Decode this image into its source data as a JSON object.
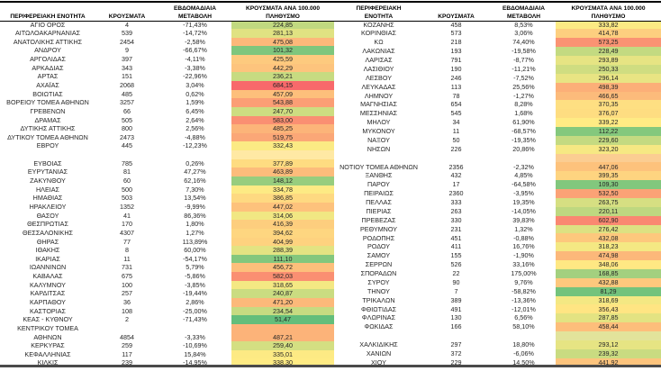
{
  "color_scale": {
    "min_color": "#63BE7B",
    "mid_color": "#FFEB84",
    "max_color": "#F8696B"
  },
  "tables": [
    {
      "id": "left",
      "headers": [
        "ΠΕΡΙΦΕΡΕΙΑΚΗ ΕΝΟΤΗΤΑ",
        "ΚΡΟΥΣΜΑΤΑ",
        "ΕΒΔΟΜΑΔΙΑΙΑ\nΜΕΤΑΒΟΛΗ",
        "ΚΡΟΥΣΜΑΤΑ ΑΝΑ 100.000\nΠΛΗΘΥΣΜΟ"
      ],
      "rows": [
        {
          "name": "ΑΓΙΟ ΟΡΟΣ",
          "cases": "4",
          "change": "-71,43%",
          "per100k": "224,85"
        },
        {
          "name": "ΑΙΤΩΛΟΑΚΑΡΝΑΝΙΑΣ",
          "cases": "539",
          "change": "-14,72%",
          "per100k": "281,13"
        },
        {
          "name": "ΑΝΑΤΟΛΙΚΗΣ ΑΤΤΙΚΗΣ",
          "cases": "2454",
          "change": "-2,58%",
          "per100k": "475,08"
        },
        {
          "name": "ΑΝΔΡΟΥ",
          "cases": "9",
          "change": "-66,67%",
          "per100k": "101,32"
        },
        {
          "name": "ΑΡΓΟΛΙΔΑΣ",
          "cases": "397",
          "change": "-4,11%",
          "per100k": "425,59"
        },
        {
          "name": "ΑΡΚΑΔΙΑΣ",
          "cases": "343",
          "change": "-3,38%",
          "per100k": "442,29"
        },
        {
          "name": "ΑΡΤΑΣ",
          "cases": "151",
          "change": "-22,96%",
          "per100k": "236,21"
        },
        {
          "name": "ΑΧΑΪΑΣ",
          "cases": "2068",
          "change": "3,04%",
          "per100k": "684,15"
        },
        {
          "name": "ΒΟΙΩΤΙΑΣ",
          "cases": "485",
          "change": "0,62%",
          "per100k": "457,09"
        },
        {
          "name": "ΒΟΡΕΙΟΥ ΤΟΜΕΑ ΑΘΗΝΩΝ",
          "cases": "3257",
          "change": "1,59%",
          "per100k": "543,88"
        },
        {
          "name": "ΓΡΕΒΕΝΩΝ",
          "cases": "66",
          "change": "6,45%",
          "per100k": "247,70"
        },
        {
          "name": "ΔΡΑΜΑΣ",
          "cases": "505",
          "change": "2,64%",
          "per100k": "583,00"
        },
        {
          "name": "ΔΥΤΙΚΗΣ ΑΤΤΙΚΗΣ",
          "cases": "800",
          "change": "2,56%",
          "per100k": "485,25"
        },
        {
          "name": "ΔΥΤΙΚΟΥ ΤΟΜΕΑ ΑΘΗΝΩΝ",
          "cases": "2473",
          "change": "-4,88%",
          "per100k": "519,75"
        },
        {
          "name": "ΕΒΡΟΥ",
          "cases": "445",
          "change": "-12,23%",
          "per100k": "332,43"
        },
        {
          "spacer": true,
          "spacer_color": "#FFE9A4"
        },
        {
          "name": "ΕΥΒΟΙΑΣ",
          "cases": "785",
          "change": "0,26%",
          "per100k": "377,89"
        },
        {
          "name": "ΕΥΡΥΤΑΝΙΑΣ",
          "cases": "81",
          "change": "47,27%",
          "per100k": "463,89"
        },
        {
          "name": "ΖΑΚΥΝΘΟΥ",
          "cases": "60",
          "change": "62,16%",
          "per100k": "148,12"
        },
        {
          "name": "ΗΛΕΙΑΣ",
          "cases": "500",
          "change": "7,30%",
          "per100k": "334,78"
        },
        {
          "name": "ΗΜΑΘΙΑΣ",
          "cases": "503",
          "change": "13,54%",
          "per100k": "386,85"
        },
        {
          "name": "ΗΡΑΚΛΕΙΟΥ",
          "cases": "1352",
          "change": "-9,99%",
          "per100k": "447,02"
        },
        {
          "name": "ΘΑΣΟΥ",
          "cases": "41",
          "change": "86,36%",
          "per100k": "314,06"
        },
        {
          "name": "ΘΕΣΠΡΩΤΙΑΣ",
          "cases": "170",
          "change": "1,80%",
          "per100k": "416,39"
        },
        {
          "name": "ΘΕΣΣΑΛΟΝΙΚΗΣ",
          "cases": "4307",
          "change": "1,27%",
          "per100k": "394,62"
        },
        {
          "name": "ΘΗΡΑΣ",
          "cases": "77",
          "change": "113,89%",
          "per100k": "404,99"
        },
        {
          "name": "ΙΘΑΚΗΣ",
          "cases": "8",
          "change": "60,00%",
          "per100k": "288,39"
        },
        {
          "name": "ΙΚΑΡΙΑΣ",
          "cases": "11",
          "change": "-54,17%",
          "per100k": "111,10"
        },
        {
          "name": "ΙΩΑΝΝΙΝΩΝ",
          "cases": "731",
          "change": "5,79%",
          "per100k": "456,72"
        },
        {
          "name": "ΚΑΒΑΛΑΣ",
          "cases": "675",
          "change": "-5,86%",
          "per100k": "582,03"
        },
        {
          "name": "ΚΑΛΥΜΝΟΥ",
          "cases": "100",
          "change": "-3,85%",
          "per100k": "318,65"
        },
        {
          "name": "ΚΑΡΔΙΤΣΑΣ",
          "cases": "257",
          "change": "-19,44%",
          "per100k": "240,87"
        },
        {
          "name": "ΚΑΡΠΑΘΟΥ",
          "cases": "36",
          "change": "2,86%",
          "per100k": "471,20"
        },
        {
          "name": "ΚΑΣΤΟΡΙΑΣ",
          "cases": "108",
          "change": "-25,00%",
          "per100k": "234,54"
        },
        {
          "name": "ΚΕΑΣ - ΚΥΘΝΟΥ",
          "cases": "2",
          "change": "-71,43%",
          "per100k": "51,47"
        },
        {
          "name": "ΚΕΝΤΡΙΚΟΥ ΤΟΜΕΑ\nΑΘΗΝΩΝ",
          "cases": "4854",
          "change": "-3,33%",
          "per100k": "487,21",
          "tall": true
        },
        {
          "name": "ΚΕΡΚΥΡΑΣ",
          "cases": "259",
          "change": "-10,69%",
          "per100k": "259,40"
        },
        {
          "name": "ΚΕΦΑΛΛΗΝΙΑΣ",
          "cases": "117",
          "change": "15,84%",
          "per100k": "335,01"
        },
        {
          "name": "ΚΙΛΚΙΣ",
          "cases": "239",
          "change": "-14,95%",
          "per100k": "338,30"
        }
      ]
    },
    {
      "id": "right",
      "headers": [
        "ΠΕΡΙΦΕΡΕΙΑΚΗ\nΕΝΟΤΗΤΑ",
        "ΚΡΟΥΣΜΑΤΑ",
        "ΕΒΔΟΜΑΔΙΑΙΑ\nΜΕΤΑΒΟΛΗ",
        "ΚΡΟΥΣΜΑΤΑ ΑΝΑ 100.000\nΠΛΗΘΥΣΜΟ"
      ],
      "rows": [
        {
          "name": "ΚΟΖΑΝΗΣ",
          "cases": "458",
          "change": "8,53%",
          "per100k": "333,82"
        },
        {
          "name": "ΚΟΡΙΝΘΙΑΣ",
          "cases": "573",
          "change": "3,06%",
          "per100k": "414,78"
        },
        {
          "name": "ΚΩ",
          "cases": "218",
          "change": "74,40%",
          "per100k": "573,25"
        },
        {
          "name": "ΛΑΚΩΝΙΑΣ",
          "cases": "193",
          "change": "-19,58%",
          "per100k": "228,49"
        },
        {
          "name": "ΛΑΡΙΣΑΣ",
          "cases": "791",
          "change": "-8,77%",
          "per100k": "293,89"
        },
        {
          "name": "ΛΑΣΙΘΙΟΥ",
          "cases": "190",
          "change": "-11,21%",
          "per100k": "250,33"
        },
        {
          "name": "ΛΕΣΒΟΥ",
          "cases": "246",
          "change": "-7,52%",
          "per100k": "296,14"
        },
        {
          "name": "ΛΕΥΚΑΔΑΣ",
          "cases": "113",
          "change": "25,56%",
          "per100k": "498,39"
        },
        {
          "name": "ΛΗΜΝΟΥ",
          "cases": "78",
          "change": "-1,27%",
          "per100k": "466,65"
        },
        {
          "name": "ΜΑΓΝΗΣΙΑΣ",
          "cases": "654",
          "change": "8,28%",
          "per100k": "370,35"
        },
        {
          "name": "ΜΕΣΣΗΝΙΑΣ",
          "cases": "545",
          "change": "1,68%",
          "per100k": "376,07"
        },
        {
          "name": "ΜΗΛΟΥ",
          "cases": "34",
          "change": "61,90%",
          "per100k": "339,22"
        },
        {
          "name": "ΜΥΚΟΝΟΥ",
          "cases": "11",
          "change": "-68,57%",
          "per100k": "112,22"
        },
        {
          "name": "ΝΑΞΟΥ",
          "cases": "50",
          "change": "-19,35%",
          "per100k": "229,60"
        },
        {
          "name": "ΝΗΣΩΝ",
          "cases": "226",
          "change": "20,86%",
          "per100k": "323,20"
        },
        {
          "spacer": true,
          "spacer_color": "#FBCD92"
        },
        {
          "name": "ΝΟΤΙΟΥ ΤΟΜΕΑ ΑΘΗΝΩΝ",
          "cases": "2356",
          "change": "-2,32%",
          "per100k": "447,06"
        },
        {
          "name": "ΞΑΝΘΗΣ",
          "cases": "432",
          "change": "4,85%",
          "per100k": "399,35"
        },
        {
          "name": "ΠΑΡΟΥ",
          "cases": "17",
          "change": "-64,58%",
          "per100k": "109,30"
        },
        {
          "name": "ΠΕΙΡΑΙΩΣ",
          "cases": "2360",
          "change": "-3,95%",
          "per100k": "532,50"
        },
        {
          "name": "ΠΕΛΛΑΣ",
          "cases": "333",
          "change": "19,35%",
          "per100k": "263,75"
        },
        {
          "name": "ΠΙΕΡΙΑΣ",
          "cases": "263",
          "change": "-14,05%",
          "per100k": "220,11"
        },
        {
          "name": "ΠΡΕΒΕΖΑΣ",
          "cases": "330",
          "change": "39,83%",
          "per100k": "602,90"
        },
        {
          "name": "ΡΕΘΥΜΝΟΥ",
          "cases": "231",
          "change": "1,32%",
          "per100k": "276,42"
        },
        {
          "name": "ΡΟΔΟΠΗΣ",
          "cases": "451",
          "change": "-0,88%",
          "per100k": "432,08"
        },
        {
          "name": "ΡΟΔΟΥ",
          "cases": "411",
          "change": "16,76%",
          "per100k": "318,23"
        },
        {
          "name": "ΣΑΜΟΥ",
          "cases": "155",
          "change": "-1,90%",
          "per100k": "474,98"
        },
        {
          "name": "ΣΕΡΡΩΝ",
          "cases": "526",
          "change": "33,16%",
          "per100k": "348,06"
        },
        {
          "name": "ΣΠΟΡΑΔΩΝ",
          "cases": "22",
          "change": "175,00%",
          "per100k": "168,85"
        },
        {
          "name": "ΣΥΡΟΥ",
          "cases": "90",
          "change": "9,76%",
          "per100k": "432,88"
        },
        {
          "name": "ΤΗΝΟΥ",
          "cases": "7",
          "change": "-58,82%",
          "per100k": "81,29"
        },
        {
          "name": "ΤΡΙΚΑΛΩΝ",
          "cases": "389",
          "change": "-13,36%",
          "per100k": "318,69"
        },
        {
          "name": "ΦΘΙΩΤΙΔΑΣ",
          "cases": "491",
          "change": "-12,01%",
          "per100k": "356,43"
        },
        {
          "name": "ΦΛΩΡΙΝΑΣ",
          "cases": "130",
          "change": "6,56%",
          "per100k": "287,85"
        },
        {
          "name": "ΦΩΚΙΔΑΣ",
          "cases": "166",
          "change": "58,10%",
          "per100k": "458,44"
        },
        {
          "spacer": true,
          "spacer_color": "#E2E39B"
        },
        {
          "name": "ΧΑΛΚΙΔΙΚΗΣ",
          "cases": "297",
          "change": "18,80%",
          "per100k": "293,12"
        },
        {
          "name": "ΧΑΝΙΩΝ",
          "cases": "372",
          "change": "-6,06%",
          "per100k": "239,32"
        },
        {
          "name": "ΧΙΟΥ",
          "cases": "229",
          "change": "14,50%",
          "per100k": "441,92"
        }
      ]
    }
  ]
}
